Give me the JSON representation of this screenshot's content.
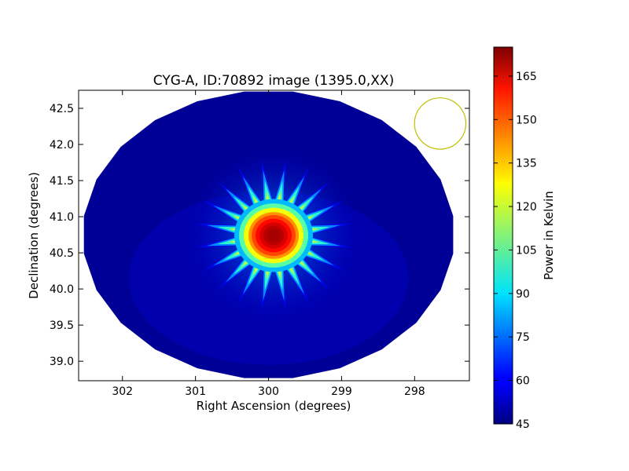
{
  "chart_data": {
    "type": "heatmap",
    "title": "CYG-A, ID:70892 image (1395.0,XX)",
    "xlabel": "Right Ascension (degrees)",
    "ylabel": "Declination (degrees)",
    "xlim": [
      302.6,
      297.25
    ],
    "ylim": [
      38.73,
      42.75
    ],
    "x_axis_inverted": true,
    "x_ticks": [
      302,
      301,
      300,
      299,
      298
    ],
    "x_tick_labels": [
      "302",
      "301",
      "300",
      "299",
      "298"
    ],
    "y_ticks": [
      39.0,
      39.5,
      40.0,
      40.5,
      41.0,
      41.5,
      42.0,
      42.5
    ],
    "y_tick_labels": [
      "39.0",
      "39.5",
      "40.0",
      "40.5",
      "41.0",
      "41.5",
      "42.0",
      "42.5"
    ],
    "grid": false,
    "colorbar": {
      "label": "Power in Kelvin",
      "colormap": "jet",
      "min": 45,
      "max": 175,
      "ticks": [
        45,
        60,
        75,
        90,
        105,
        120,
        135,
        150,
        165
      ],
      "tick_labels": [
        "45",
        "60",
        "75",
        "90",
        "105",
        "120",
        "135",
        "150",
        "165"
      ]
    },
    "field": {
      "center_ra": 300.0,
      "center_dec": 40.75,
      "ra_half_width": 2.55,
      "dec_half_width": 2.0,
      "background_level": 48
    },
    "source": {
      "name": "CYG-A",
      "ra": 299.93,
      "dec": 40.74,
      "peak_kelvin": 170,
      "radial_spokes": 20
    },
    "beam_circle": {
      "ra": 297.65,
      "dec": 42.29,
      "radius_deg": 0.37,
      "color": "#bfbf00"
    },
    "colors": {
      "axis": "#000000",
      "background": "#ffffff"
    }
  }
}
